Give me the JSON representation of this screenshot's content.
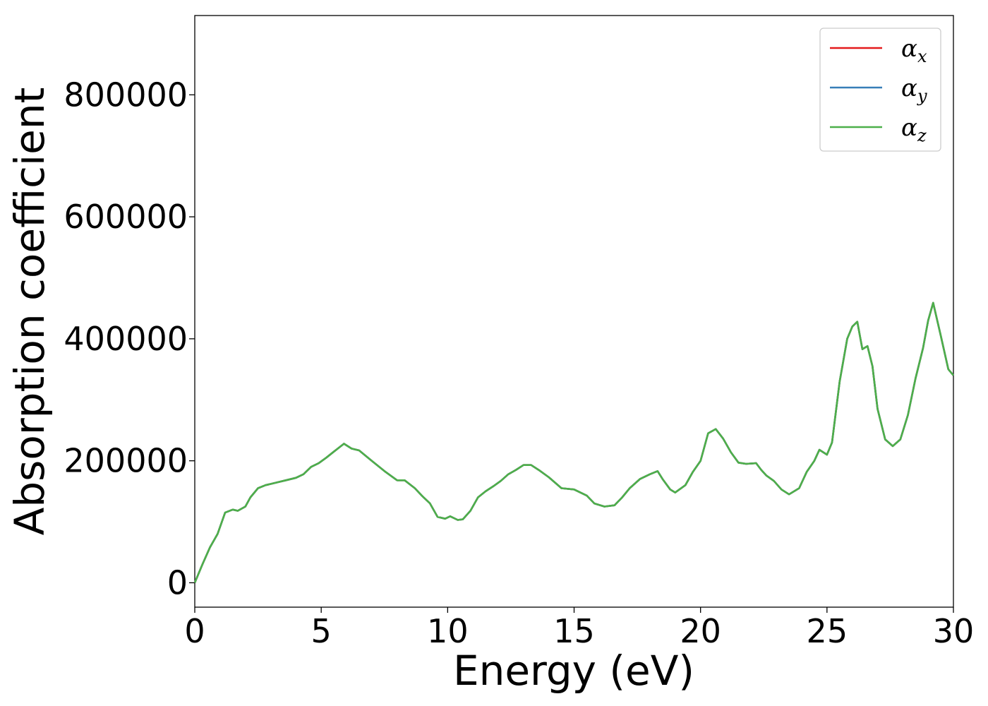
{
  "chart_data": {
    "type": "line",
    "title": "",
    "xlabel": "Energy (eV)",
    "ylabel": "Absorption coefficient",
    "xlim": [
      0,
      30
    ],
    "ylim": [
      -40000,
      930000
    ],
    "xticks": [
      0,
      5,
      10,
      15,
      20,
      25,
      30
    ],
    "xtick_labels": [
      "0",
      "5",
      "10",
      "15",
      "20",
      "25",
      "30"
    ],
    "yticks": [
      0,
      200000,
      400000,
      600000,
      800000
    ],
    "ytick_labels": [
      "0",
      "200000",
      "400000",
      "600000",
      "800000"
    ],
    "grid": false,
    "legend_position": "top-right",
    "x": [
      0,
      0.3,
      0.6,
      0.9,
      1.2,
      1.5,
      1.7,
      2.0,
      2.2,
      2.5,
      2.8,
      3.0,
      3.3,
      3.6,
      4.0,
      4.3,
      4.6,
      4.9,
      5.2,
      5.5,
      5.9,
      6.2,
      6.5,
      7.0,
      7.5,
      8.0,
      8.3,
      8.7,
      9.0,
      9.3,
      9.6,
      9.9,
      10.1,
      10.4,
      10.6,
      10.9,
      11.2,
      11.5,
      11.8,
      12.1,
      12.4,
      12.7,
      13.0,
      13.3,
      13.6,
      14.0,
      14.5,
      15.0,
      15.5,
      15.8,
      16.2,
      16.6,
      16.9,
      17.2,
      17.6,
      18.0,
      18.3,
      18.5,
      18.8,
      19.0,
      19.4,
      19.7,
      20.0,
      20.3,
      20.6,
      20.9,
      21.2,
      21.5,
      21.8,
      22.2,
      22.4,
      22.6,
      22.9,
      23.2,
      23.5,
      23.9,
      24.2,
      24.5,
      24.7,
      25.0,
      25.2,
      25.5,
      25.8,
      26.0,
      26.2,
      26.4,
      26.6,
      26.8,
      27.0,
      27.3,
      27.6,
      27.9,
      28.2,
      28.5,
      28.8,
      29.0,
      29.2,
      29.5,
      29.8,
      30.0
    ],
    "series": [
      {
        "name": "α_x",
        "color": "#e41a1c",
        "values": [
          0,
          30000,
          58000,
          80000,
          115000,
          120000,
          118000,
          125000,
          140000,
          155000,
          160000,
          162000,
          165000,
          168000,
          172000,
          178000,
          190000,
          196000,
          205000,
          215000,
          228000,
          220000,
          217000,
          200000,
          183000,
          168000,
          168000,
          155000,
          142000,
          130000,
          108000,
          105000,
          109000,
          103000,
          104000,
          118000,
          140000,
          150000,
          158000,
          167000,
          178000,
          185000,
          193000,
          193000,
          185000,
          173000,
          155000,
          153000,
          143000,
          130000,
          125000,
          127000,
          140000,
          155000,
          170000,
          178000,
          183000,
          170000,
          153000,
          148000,
          160000,
          182000,
          200000,
          245000,
          252000,
          236000,
          214000,
          197000,
          195000,
          196000,
          185000,
          176000,
          167000,
          153000,
          145000,
          155000,
          182000,
          200000,
          218000,
          210000,
          230000,
          330000,
          400000,
          420000,
          428000,
          383000,
          388000,
          355000,
          285000,
          235000,
          224000,
          235000,
          275000,
          335000,
          385000,
          430000,
          459000,
          405000,
          350000,
          340000
        ]
      },
      {
        "name": "α_y",
        "color": "#377eb8",
        "values": [
          0,
          30000,
          58000,
          80000,
          115000,
          120000,
          118000,
          125000,
          140000,
          155000,
          160000,
          162000,
          165000,
          168000,
          172000,
          178000,
          190000,
          196000,
          205000,
          215000,
          228000,
          220000,
          217000,
          200000,
          183000,
          168000,
          168000,
          155000,
          142000,
          130000,
          108000,
          105000,
          109000,
          103000,
          104000,
          118000,
          140000,
          150000,
          158000,
          167000,
          178000,
          185000,
          193000,
          193000,
          185000,
          173000,
          155000,
          153000,
          143000,
          130000,
          125000,
          127000,
          140000,
          155000,
          170000,
          178000,
          183000,
          170000,
          153000,
          148000,
          160000,
          182000,
          200000,
          245000,
          252000,
          236000,
          214000,
          197000,
          195000,
          196000,
          185000,
          176000,
          167000,
          153000,
          145000,
          155000,
          182000,
          200000,
          218000,
          210000,
          230000,
          330000,
          400000,
          420000,
          428000,
          383000,
          388000,
          355000,
          285000,
          235000,
          224000,
          235000,
          275000,
          335000,
          385000,
          430000,
          459000,
          405000,
          350000,
          340000
        ]
      },
      {
        "name": "α_z",
        "color": "#4daf4a",
        "values": [
          0,
          30000,
          58000,
          80000,
          115000,
          120000,
          118000,
          125000,
          140000,
          155000,
          160000,
          162000,
          165000,
          168000,
          172000,
          178000,
          190000,
          196000,
          205000,
          215000,
          228000,
          220000,
          217000,
          200000,
          183000,
          168000,
          168000,
          155000,
          142000,
          130000,
          108000,
          105000,
          109000,
          103000,
          104000,
          118000,
          140000,
          150000,
          158000,
          167000,
          178000,
          185000,
          193000,
          193000,
          185000,
          173000,
          155000,
          153000,
          143000,
          130000,
          125000,
          127000,
          140000,
          155000,
          170000,
          178000,
          183000,
          170000,
          153000,
          148000,
          160000,
          182000,
          200000,
          245000,
          252000,
          236000,
          214000,
          197000,
          195000,
          196000,
          185000,
          176000,
          167000,
          153000,
          145000,
          155000,
          182000,
          200000,
          218000,
          210000,
          230000,
          330000,
          400000,
          420000,
          428000,
          383000,
          388000,
          355000,
          285000,
          235000,
          224000,
          235000,
          275000,
          335000,
          385000,
          430000,
          459000,
          405000,
          350000,
          340000
        ]
      }
    ],
    "legend": [
      {
        "symbol": "α",
        "sub": "x",
        "color": "#e41a1c"
      },
      {
        "symbol": "α",
        "sub": "y",
        "color": "#377eb8"
      },
      {
        "symbol": "α",
        "sub": "z",
        "color": "#4daf4a"
      }
    ]
  }
}
